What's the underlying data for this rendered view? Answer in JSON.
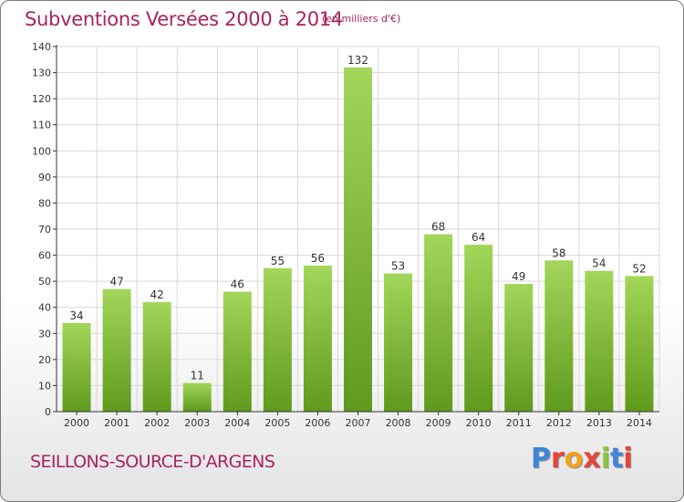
{
  "title": "Subventions Versées 2000 à 2014",
  "unit_note": "(en milliers d'€)",
  "commune": "SEILLONS-SOURCE-D'ARGENS",
  "logo": {
    "letters": [
      "P",
      "r",
      "o",
      "x",
      "i",
      "t",
      "i"
    ],
    "colors": [
      "#3f86d8",
      "#e8433b",
      "#f2a21c",
      "#e8433b",
      "#8cc63f",
      "#3f86d8",
      "#e8433b"
    ]
  },
  "colors": {
    "bar_top": "#a3d65a",
    "bar_bottom": "#5f9a1c",
    "title": "#a8245e",
    "grid": "#d9d9d9",
    "axis": "#333333"
  },
  "chart_data": {
    "type": "bar",
    "title": "Subventions Versées 2000 à 2014",
    "xlabel": "",
    "ylabel": "",
    "categories": [
      "2000",
      "2001",
      "2002",
      "2003",
      "2004",
      "2005",
      "2006",
      "2007",
      "2008",
      "2009",
      "2010",
      "2011",
      "2012",
      "2013",
      "2014"
    ],
    "values": [
      34,
      47,
      42,
      11,
      46,
      55,
      56,
      132,
      53,
      68,
      64,
      49,
      58,
      54,
      52
    ],
    "ylim": [
      0,
      140
    ],
    "yticks": [
      0,
      10,
      20,
      30,
      40,
      50,
      60,
      70,
      80,
      90,
      100,
      110,
      120,
      130,
      140
    ],
    "grid": true,
    "data_labels": true
  }
}
